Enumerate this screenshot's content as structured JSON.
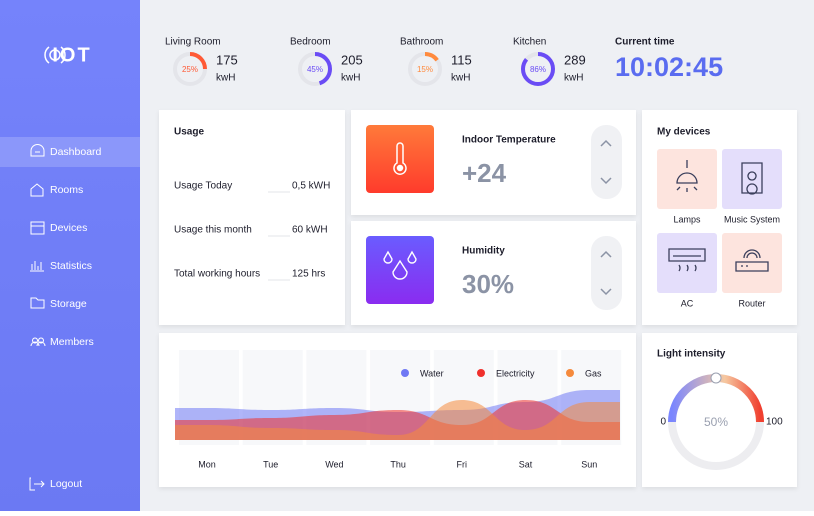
{
  "sidebar": {
    "logo": "IOT",
    "nav": [
      "Dashboard",
      "Rooms",
      "Devices",
      "Statistics",
      "Storage",
      "Members"
    ],
    "logout": "Logout"
  },
  "rooms": [
    {
      "name": "Living Room",
      "usage": 175,
      "unit": "kwH",
      "gauge": {
        "value": 25,
        "label": "25%"
      },
      "color": "#ff5a36"
    },
    {
      "name": "Bedroom",
      "usage": 205,
      "unit": "kwH",
      "gauge": {
        "value": 45,
        "label": "45%"
      },
      "color": "#6a4cf5"
    },
    {
      "name": "Bathroom",
      "usage": 115,
      "unit": "kwH",
      "gauge": {
        "value": 15,
        "label": "15%"
      },
      "color": "#ff8a3d"
    },
    {
      "name": "Kitchen",
      "usage": 289,
      "unit": "kwH",
      "gauge": {
        "value": 86,
        "label": "86%"
      },
      "color": "#6a4cf5"
    }
  ],
  "current_time": {
    "label": "Current time",
    "value": "10:02:45"
  },
  "usage": {
    "title": "Usage",
    "rows": [
      {
        "label": "Usage Today",
        "value": "0,5 kWH"
      },
      {
        "label": "Usage this month",
        "value": "60 kWH"
      },
      {
        "label": "Total working hours",
        "value": "125 hrs"
      }
    ]
  },
  "temperature": {
    "title": "Indoor Temperature",
    "value": "+24"
  },
  "humidity": {
    "title": "Humidity",
    "value": "30%"
  },
  "devices": {
    "title": "My devices",
    "items": [
      "Lamps",
      "Music System",
      "AC",
      "Router"
    ]
  },
  "usage_chart": {
    "type": "area",
    "categories": [
      "Mon",
      "Tue",
      "Wed",
      "Thu",
      "Fri",
      "Sat",
      "Sun"
    ],
    "series": [
      {
        "name": "Water",
        "color": "#6f78f4",
        "values": [
          32,
          30,
          32,
          28,
          30,
          38,
          50
        ]
      },
      {
        "name": "Electricity",
        "color": "#f0302c",
        "values": [
          20,
          22,
          25,
          30,
          15,
          40,
          18
        ]
      },
      {
        "name": "Gas",
        "color": "#f58a3c",
        "values": [
          15,
          12,
          10,
          5,
          40,
          10,
          38
        ]
      }
    ]
  },
  "light_intensity": {
    "title": "Light intensity",
    "min": 0,
    "max": 100,
    "value": 50,
    "label": "50%"
  }
}
